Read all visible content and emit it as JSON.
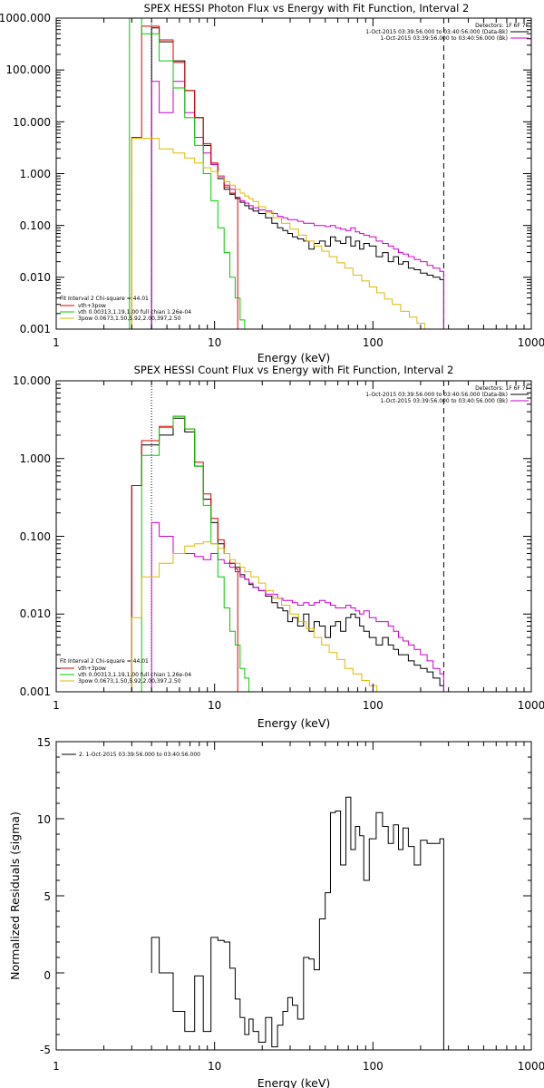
{
  "chart_data": [
    {
      "type": "line",
      "title": "SPEX HESSI Photon Flux vs Energy with Fit Function, Interval 2",
      "xlabel": "Energy (keV)",
      "x_scale": "log",
      "y_scale": "log",
      "xlim": [
        1,
        1000
      ],
      "ylim": [
        0.001,
        1000
      ],
      "x_ticks": [
        "1",
        "10",
        "100",
        "1000"
      ],
      "y_ticks": [
        "0.001",
        "0.010",
        "0.100",
        "1.000",
        "10.000",
        "100.000",
        "1000.000"
      ],
      "legend_top_right": [
        "Detectors: 1F 6F 7F",
        "1-Oct-2015 03:39:56.000 to 03:40:56.000 (Data-Bk)",
        "1-Oct-2015 03:39:56.000 to 03:40:56.000 (Bk)"
      ],
      "legend_bottom_left": [
        "Fit Interval 2   Chi-square = 44.01",
        "vth+3pow",
        "vth 0.00313,1.19,1.00  full chian 1.26e-04",
        "3pow 0.0673,1.50,5.92,2.00,397,2.50"
      ],
      "vlines": [
        {
          "x": 4.0,
          "style": "dotted"
        },
        {
          "x": 280,
          "style": "dashed"
        }
      ],
      "series": [
        {
          "name": "Data-Bk",
          "color": "#000000",
          "x": [
            4,
            5,
            6,
            7,
            8,
            9,
            10,
            11,
            12,
            13,
            14,
            15,
            16,
            17,
            18,
            20,
            22,
            24,
            26,
            28,
            30,
            32,
            35,
            38,
            41,
            44,
            48,
            52,
            56,
            60,
            65,
            70,
            75,
            80,
            85,
            90,
            100,
            110,
            120,
            130,
            140,
            150,
            160,
            175,
            190,
            210,
            230,
            250,
            280
          ],
          "y": [
            650,
            350,
            150,
            40,
            12,
            3.5,
            1.5,
            0.8,
            0.5,
            0.4,
            0.33,
            0.28,
            0.24,
            0.21,
            0.19,
            0.17,
            0.14,
            0.11,
            0.09,
            0.08,
            0.07,
            0.06,
            0.055,
            0.05,
            0.035,
            0.045,
            0.05,
            0.04,
            0.06,
            0.05,
            0.045,
            0.06,
            0.04,
            0.05,
            0.035,
            0.045,
            0.04,
            0.025,
            0.03,
            0.02,
            0.025,
            0.018,
            0.02,
            0.015,
            0.014,
            0.012,
            0.011,
            0.01,
            0.009
          ]
        },
        {
          "name": "Bk",
          "color": "#cc00cc",
          "x": [
            4,
            5,
            6,
            7,
            8,
            9,
            10,
            11,
            12,
            13,
            14,
            15,
            16,
            17,
            18,
            20,
            22,
            24,
            26,
            28,
            30,
            32,
            35,
            38,
            41,
            44,
            48,
            52,
            56,
            60,
            65,
            70,
            75,
            80,
            85,
            90,
            100,
            110,
            120,
            130,
            140,
            150,
            160,
            175,
            190,
            210,
            230,
            250,
            280
          ],
          "y": [
            60,
            15,
            60,
            15,
            5,
            2.5,
            1.5,
            0.9,
            0.6,
            0.5,
            0.35,
            0.3,
            0.27,
            0.24,
            0.22,
            0.2,
            0.19,
            0.17,
            0.15,
            0.14,
            0.13,
            0.13,
            0.12,
            0.11,
            0.11,
            0.1,
            0.1,
            0.095,
            0.1,
            0.09,
            0.085,
            0.08,
            0.09,
            0.075,
            0.07,
            0.065,
            0.06,
            0.05,
            0.045,
            0.04,
            0.035,
            0.03,
            0.028,
            0.025,
            0.022,
            0.02,
            0.017,
            0.015,
            0.013
          ]
        },
        {
          "name": "vth+3pow",
          "color": "#dd0000",
          "x": [
            3,
            4,
            5,
            6,
            7,
            8,
            9,
            10,
            11,
            12,
            13,
            14
          ],
          "y": [
            5,
            700,
            380,
            140,
            40,
            12,
            3.8,
            1.6,
            0.85,
            0.55,
            0.42,
            0.35
          ]
        },
        {
          "name": "vth",
          "color": "#00cc00",
          "x": [
            2.9,
            3,
            4,
            5,
            6,
            7,
            8,
            9,
            10,
            11,
            12,
            13,
            14,
            15,
            16,
            17,
            18
          ],
          "y": [
            1000,
            1000,
            500,
            150,
            45,
            12,
            3.5,
            1.0,
            0.3,
            0.09,
            0.03,
            0.01,
            0.004,
            0.0015,
            0.001,
            0.001,
            0.001
          ]
        },
        {
          "name": "3pow",
          "color": "#ddbb00",
          "x": [
            3,
            4,
            5,
            6,
            7,
            8,
            9,
            10,
            11,
            12,
            13,
            14,
            15,
            16,
            17,
            18,
            20,
            22,
            25,
            28,
            32,
            36,
            40,
            45,
            50,
            56,
            63,
            70,
            80,
            90,
            100,
            112,
            125,
            140,
            160,
            180,
            200,
            225,
            250,
            280
          ],
          "y": [
            4.8,
            4.8,
            3.0,
            2.5,
            2.0,
            1.6,
            1.3,
            1.1,
            0.85,
            0.7,
            0.6,
            0.5,
            0.42,
            0.37,
            0.33,
            0.29,
            0.23,
            0.18,
            0.14,
            0.11,
            0.085,
            0.065,
            0.05,
            0.04,
            0.032,
            0.025,
            0.019,
            0.015,
            0.011,
            0.0085,
            0.0065,
            0.005,
            0.0038,
            0.003,
            0.0022,
            0.0017,
            0.0013,
            0.001,
            0.001,
            0.001
          ]
        }
      ]
    },
    {
      "type": "line",
      "title": "SPEX HESSI Count Flux vs Energy with Fit Function, Interval 2",
      "xlabel": "Energy (keV)",
      "x_scale": "log",
      "y_scale": "log",
      "xlim": [
        1,
        1000
      ],
      "ylim": [
        0.001,
        10
      ],
      "x_ticks": [
        "1",
        "10",
        "100",
        "1000"
      ],
      "y_ticks": [
        "0.001",
        "0.010",
        "0.100",
        "1.000",
        "10.000"
      ],
      "legend_top_right": [
        "Detectors: 1F 6F 7F",
        "1-Oct-2015 03:39:56.000 to 03:40:56.000 (Data-Bk)",
        "1-Oct-2015 03:39:56.000 to 03:40:56.000 (Bk)"
      ],
      "legend_bottom_left": [
        "Fit Interval 2   Chi-square = 44.01",
        "vth+3pow",
        "vth 0.00313,1.19,1.00  full chian 1.26e-04",
        "3pow 0.0673,1.50,5.92,2.00,397,2.50"
      ],
      "vlines": [
        {
          "x": 4.0,
          "style": "dotted"
        },
        {
          "x": 280,
          "style": "dashed"
        }
      ],
      "series": [
        {
          "name": "Data-Bk",
          "color": "#000000",
          "x": [
            3,
            4,
            5,
            6,
            7,
            8,
            9,
            10,
            11,
            12,
            13,
            14,
            15,
            16,
            17,
            18,
            20,
            22,
            24,
            26,
            28,
            30,
            32,
            35,
            38,
            41,
            44,
            48,
            52,
            56,
            60,
            65,
            70,
            75,
            80,
            85,
            90,
            100,
            110,
            120,
            130,
            140,
            150,
            160,
            175,
            190,
            210,
            230,
            250,
            280
          ],
          "y": [
            0.45,
            1.5,
            2.0,
            3.3,
            2.2,
            0.8,
            0.3,
            0.15,
            0.08,
            0.06,
            0.045,
            0.04,
            0.032,
            0.028,
            0.024,
            0.022,
            0.02,
            0.017,
            0.014,
            0.012,
            0.011,
            0.008,
            0.009,
            0.007,
            0.01,
            0.006,
            0.008,
            0.007,
            0.005,
            0.007,
            0.008,
            0.006,
            0.009,
            0.01,
            0.009,
            0.007,
            0.006,
            0.005,
            0.004,
            0.005,
            0.004,
            0.0035,
            0.003,
            0.003,
            0.0025,
            0.0022,
            0.002,
            0.0018,
            0.0015,
            0.0012
          ]
        },
        {
          "name": "Bk",
          "color": "#cc00cc",
          "x": [
            4,
            5,
            6,
            7,
            8,
            9,
            10,
            11,
            12,
            13,
            14,
            15,
            16,
            17,
            18,
            20,
            22,
            24,
            26,
            28,
            30,
            32,
            35,
            38,
            41,
            44,
            48,
            52,
            56,
            60,
            65,
            70,
            75,
            80,
            85,
            90,
            100,
            110,
            120,
            130,
            140,
            150,
            160,
            175,
            190,
            210,
            230,
            250,
            280
          ],
          "y": [
            0.15,
            0.1,
            0.06,
            0.06,
            0.055,
            0.05,
            0.06,
            0.05,
            0.045,
            0.04,
            0.035,
            0.03,
            0.028,
            0.025,
            0.022,
            0.02,
            0.018,
            0.018,
            0.016,
            0.015,
            0.015,
            0.014,
            0.013,
            0.014,
            0.013,
            0.014,
            0.015,
            0.014,
            0.013,
            0.012,
            0.012,
            0.013,
            0.012,
            0.011,
            0.01,
            0.011,
            0.009,
            0.008,
            0.008,
            0.007,
            0.006,
            0.005,
            0.0045,
            0.004,
            0.0035,
            0.003,
            0.0025,
            0.002,
            0.0017
          ]
        },
        {
          "name": "vth+3pow",
          "color": "#dd0000",
          "x": [
            3,
            4,
            5,
            6,
            7,
            8,
            9,
            10,
            11,
            12,
            13,
            14
          ],
          "y": [
            0.45,
            1.7,
            2.6,
            3.5,
            2.4,
            0.9,
            0.35,
            0.17,
            0.09,
            0.06,
            0.045,
            0.038
          ]
        },
        {
          "name": "vth",
          "color": "#00cc00",
          "x": [
            3,
            4,
            5,
            6,
            7,
            8,
            9,
            10,
            11,
            12,
            13,
            14,
            15,
            16,
            17,
            18
          ],
          "y": [
            0.001,
            1.1,
            2.5,
            3.5,
            2.4,
            0.8,
            0.25,
            0.08,
            0.03,
            0.012,
            0.006,
            0.004,
            0.002,
            0.0015,
            0.001,
            0.001
          ]
        },
        {
          "name": "3pow",
          "color": "#ddbb00",
          "x": [
            3,
            4,
            5,
            6,
            7,
            8,
            9,
            10,
            11,
            12,
            13,
            14,
            15,
            16,
            18,
            20,
            22,
            25,
            28,
            32,
            36,
            40,
            45,
            50,
            56,
            63,
            70,
            80,
            90,
            100,
            112,
            125,
            140
          ],
          "y": [
            0.009,
            0.03,
            0.045,
            0.06,
            0.075,
            0.08,
            0.085,
            0.08,
            0.07,
            0.06,
            0.05,
            0.045,
            0.04,
            0.035,
            0.03,
            0.025,
            0.02,
            0.016,
            0.013,
            0.01,
            0.008,
            0.0065,
            0.005,
            0.004,
            0.0032,
            0.0026,
            0.002,
            0.0017,
            0.0014,
            0.0012,
            0.001,
            0.001,
            0.001
          ]
        }
      ]
    },
    {
      "type": "line",
      "title": "",
      "xlabel": "Energy (keV)",
      "ylabel": "Normalized Residuals (sigma)",
      "x_scale": "log",
      "y_scale": "linear",
      "xlim": [
        1,
        1000
      ],
      "ylim": [
        -5,
        15
      ],
      "x_ticks": [
        "1",
        "10",
        "100",
        "1000"
      ],
      "y_ticks": [
        "-5",
        "0",
        "5",
        "10",
        "15"
      ],
      "legend": [
        "2.  1-Oct-2015 03:39:56.000 to 03:40:56.000"
      ],
      "series": [
        {
          "name": "",
          "color": "#000000",
          "x": [
            4,
            5,
            6,
            7,
            8,
            9,
            10,
            11,
            12,
            13,
            14,
            15,
            16,
            17,
            18,
            20,
            22,
            24,
            26,
            28,
            30,
            32,
            35,
            38,
            41,
            44,
            48,
            52,
            56,
            60,
            65,
            70,
            75,
            80,
            85,
            90,
            100,
            110,
            120,
            130,
            140,
            150,
            160,
            175,
            190,
            210,
            230,
            250,
            280
          ],
          "y": [
            2.3,
            0,
            -2.5,
            -3.8,
            -0.2,
            -3.8,
            2.3,
            2.1,
            2.0,
            0.3,
            -1.7,
            -2.9,
            -4.0,
            -3.0,
            -3.8,
            -4.5,
            -2.9,
            -4.8,
            -3.4,
            -2.5,
            -1.6,
            -2.1,
            -3.0,
            1.0,
            0.9,
            0.2,
            3.5,
            5.2,
            10.4,
            10.5,
            7.0,
            11.4,
            8.0,
            9.5,
            8.9,
            6.0,
            8.7,
            10.4,
            9.5,
            8.4,
            9.6,
            8.0,
            9.4,
            8.2,
            7.0,
            8.6,
            8.4,
            8.4,
            8.7
          ]
        }
      ]
    }
  ]
}
